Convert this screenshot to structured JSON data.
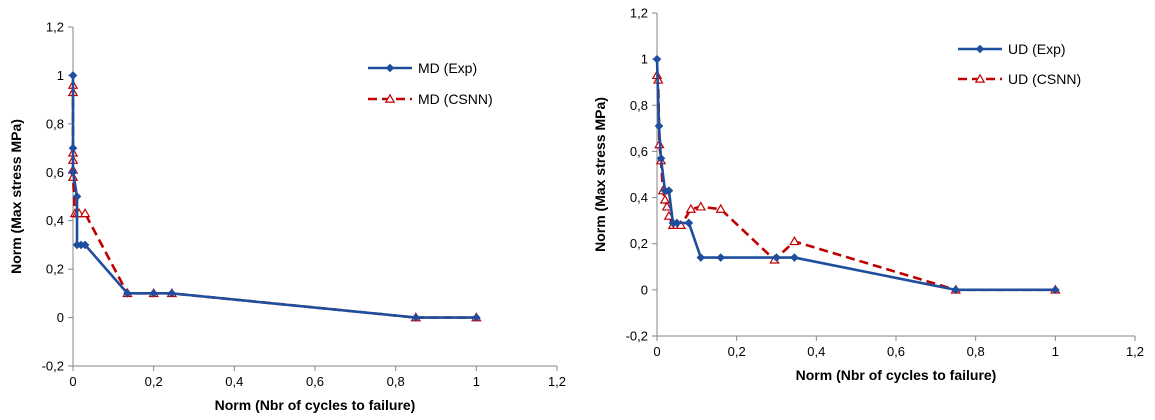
{
  "chart_data": [
    {
      "type": "line",
      "title": "",
      "xlabel": "Norm (Nbr of cycles to failure)",
      "ylabel": "Norm (Max stress MPa)",
      "xlim": [
        0,
        1.2
      ],
      "ylim": [
        -0.2,
        1.2
      ],
      "x_ticks": [
        0,
        0.2,
        0.4,
        0.6,
        0.8,
        1,
        1.2
      ],
      "y_ticks": [
        -0.2,
        0,
        0.2,
        0.4,
        0.6,
        0.8,
        1,
        1.2
      ],
      "x_tick_labels": [
        "0",
        "0,2",
        "0,4",
        "0,6",
        "0,8",
        "1",
        "1,2"
      ],
      "y_tick_labels": [
        "-0,2",
        "0",
        "0,2",
        "0,4",
        "0,6",
        "0,8",
        "1",
        "1,2"
      ],
      "grid": false,
      "legend_position": "top-right",
      "series": [
        {
          "name": "MD (Exp)",
          "color": "#1f4e9e",
          "style": "solid",
          "marker": "diamond",
          "x": [
            0,
            0,
            0,
            0.01,
            0.01,
            0.02,
            0.03,
            0.135,
            0.2,
            0.245,
            0.85,
            1.0
          ],
          "y": [
            1.0,
            0.7,
            0.6,
            0.5,
            0.3,
            0.3,
            0.3,
            0.1,
            0.1,
            0.1,
            0.0,
            0.0
          ]
        },
        {
          "name": "MD (CSNN)",
          "color": "#c00000",
          "style": "dashed",
          "marker": "triangle",
          "x": [
            0,
            0,
            0,
            0,
            0,
            0,
            0.005,
            0.01,
            0.015,
            0.03,
            0.135,
            0.2,
            0.245,
            0.85,
            1.0
          ],
          "y": [
            0.96,
            0.93,
            0.68,
            0.65,
            0.61,
            0.58,
            0.43,
            0.43,
            0.43,
            0.43,
            0.1,
            0.1,
            0.1,
            0.0,
            0.0
          ]
        }
      ]
    },
    {
      "type": "line",
      "title": "",
      "xlabel": "Norm (Nbr of cycles to failure)",
      "ylabel": "Norm (Max stress MPa)",
      "xlim": [
        0,
        1.2
      ],
      "ylim": [
        -0.2,
        1.2
      ],
      "x_ticks": [
        0,
        0.2,
        0.4,
        0.6,
        0.8,
        1,
        1.2
      ],
      "y_ticks": [
        -0.2,
        0,
        0.2,
        0.4,
        0.6,
        0.8,
        1,
        1.2
      ],
      "x_tick_labels": [
        "0",
        "0,2",
        "0,4",
        "0,6",
        "0,8",
        "1",
        "1,2"
      ],
      "y_tick_labels": [
        "-0,2",
        "0",
        "0,2",
        "0,4",
        "0,6",
        "0,8",
        "1",
        "1,2"
      ],
      "grid": false,
      "legend_position": "top-right",
      "series": [
        {
          "name": "UD (Exp)",
          "color": "#1f4e9e",
          "style": "solid",
          "marker": "diamond",
          "x": [
            0,
            0.005,
            0.01,
            0.02,
            0.03,
            0.04,
            0.05,
            0.08,
            0.11,
            0.16,
            0.3,
            0.345,
            0.75,
            1.0
          ],
          "y": [
            1.0,
            0.71,
            0.57,
            0.43,
            0.43,
            0.29,
            0.29,
            0.29,
            0.14,
            0.14,
            0.14,
            0.14,
            0.0,
            0.0
          ]
        },
        {
          "name": "UD (CSNN)",
          "color": "#c00000",
          "style": "dashed",
          "marker": "triangle",
          "x": [
            0,
            0.003,
            0.006,
            0.01,
            0.015,
            0.02,
            0.025,
            0.03,
            0.04,
            0.05,
            0.06,
            0.085,
            0.11,
            0.16,
            0.295,
            0.345,
            0.75,
            1.0
          ],
          "y": [
            0.93,
            0.91,
            0.63,
            0.56,
            0.43,
            0.39,
            0.36,
            0.32,
            0.28,
            0.28,
            0.28,
            0.35,
            0.36,
            0.35,
            0.13,
            0.21,
            0.0,
            0.0
          ]
        }
      ]
    }
  ]
}
